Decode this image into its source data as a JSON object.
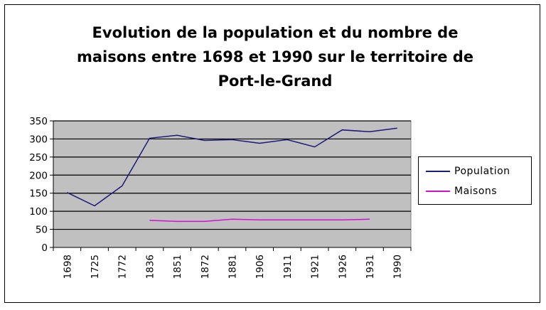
{
  "chart_data": {
    "type": "line",
    "title_lines": [
      "Evolution de la population et du nombre de",
      "maisons entre 1698 et 1990 sur le territoire de",
      "Port-le-Grand"
    ],
    "categories": [
      "1698",
      "1725",
      "1772",
      "1836",
      "1851",
      "1872",
      "1881",
      "1906",
      "1911",
      "1921",
      "1926",
      "1931",
      "1990"
    ],
    "series": [
      {
        "name": "Population",
        "color": "#1a1a7a",
        "values": [
          152,
          115,
          170,
          302,
          310,
          296,
          298,
          288,
          298,
          278,
          325,
          320,
          330
        ]
      },
      {
        "name": "Maisons",
        "color": "#d010d0",
        "values": [
          null,
          null,
          null,
          75,
          72,
          72,
          78,
          76,
          76,
          76,
          76,
          78,
          null
        ]
      }
    ],
    "y_ticks": [
      "0",
      "50",
      "100",
      "150",
      "200",
      "250",
      "300",
      "350"
    ],
    "ylim": [
      0,
      350
    ],
    "plot_background": "#c0c0c0",
    "grid": true,
    "legend_position": "right"
  }
}
